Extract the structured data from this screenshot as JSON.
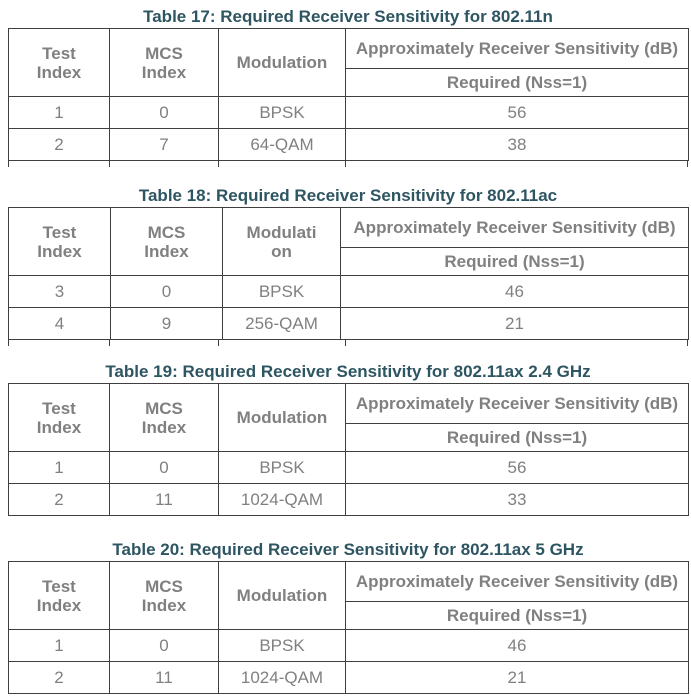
{
  "document": {
    "background_color": "#FFFFFF",
    "title_color": "#2E5562",
    "table_text_color": "#808080",
    "border_color": "#3F3F3F"
  },
  "tables": [
    {
      "title": "Table 17: Required Receiver Sensitivity for 802.11n",
      "col_headers": {
        "test_index": "Test Index",
        "mcs_index": "MCS Index",
        "modulation": "Modulation"
      },
      "sensitivity_header": "Approximately Receiver Sensitivity (dB)",
      "required_subheader": "Required (Nss=1)",
      "rows": [
        {
          "test_index": "1",
          "mcs_index": "0",
          "modulation": "BPSK",
          "required": "56"
        },
        {
          "test_index": "2",
          "mcs_index": "7",
          "modulation": "64-QAM",
          "required": "38"
        }
      ]
    },
    {
      "title": "Table 18: Required Receiver Sensitivity for 802.11ac",
      "col_headers": {
        "test_index": "Test Index",
        "mcs_index": "MCS Index",
        "modulation": "Modulation"
      },
      "sensitivity_header": "Approximately Receiver Sensitivity (dB)",
      "required_subheader": "Required (Nss=1)",
      "rows": [
        {
          "test_index": "3",
          "mcs_index": "0",
          "modulation": "BPSK",
          "required": "46"
        },
        {
          "test_index": "4",
          "mcs_index": "9",
          "modulation": "256-QAM",
          "required": "21"
        }
      ]
    },
    {
      "title": "Table 19: Required Receiver Sensitivity for 802.11ax 2.4 GHz",
      "col_headers": {
        "test_index": "Test Index",
        "mcs_index": "MCS Index",
        "modulation": "Modulation"
      },
      "sensitivity_header": "Approximately Receiver Sensitivity (dB)",
      "required_subheader": "Required (Nss=1)",
      "rows": [
        {
          "test_index": "1",
          "mcs_index": "0",
          "modulation": "BPSK",
          "required": "56"
        },
        {
          "test_index": "2",
          "mcs_index": "11",
          "modulation": "1024-QAM",
          "required": "33"
        }
      ]
    },
    {
      "title": "Table 20: Required Receiver Sensitivity for 802.11ax 5 GHz",
      "col_headers": {
        "test_index": "Test Index",
        "mcs_index": "MCS Index",
        "modulation": "Modulation"
      },
      "sensitivity_header": "Approximately Receiver Sensitivity (dB)",
      "required_subheader": "Required (Nss=1)",
      "rows": [
        {
          "test_index": "1",
          "mcs_index": "0",
          "modulation": "BPSK",
          "required": "46"
        },
        {
          "test_index": "2",
          "mcs_index": "11",
          "modulation": "1024-QAM",
          "required": "21"
        }
      ]
    }
  ]
}
